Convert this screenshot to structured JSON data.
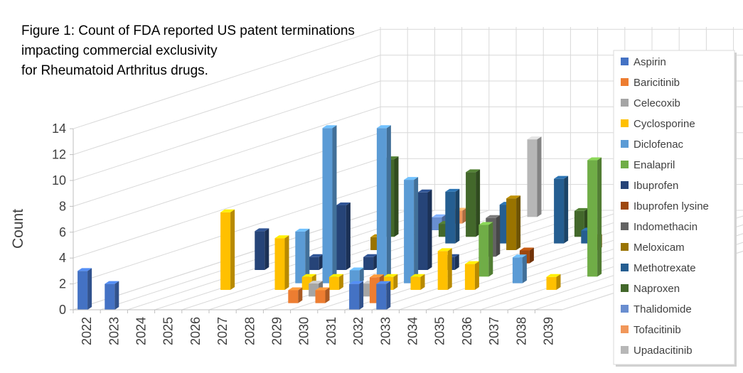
{
  "chart_data": {
    "type": "bar",
    "subtype": "3d-column",
    "title_lines": [
      "Figure 1: Count of FDA reported US patent terminations",
      "impacting commercial exclusivity",
      "for Rheumatoid Arthritus drugs."
    ],
    "ylabel": "Count",
    "xlabel": "",
    "ylim": [
      0,
      14
    ],
    "yticks": [
      "0",
      "2",
      "4",
      "6",
      "8",
      "10",
      "12",
      "14"
    ],
    "categories": [
      "2022",
      "2023",
      "2024",
      "2025",
      "2026",
      "2027",
      "2028",
      "2029",
      "2030",
      "2031",
      "2032",
      "2033",
      "2034",
      "2035",
      "2036",
      "2037",
      "2038",
      "2039"
    ],
    "grid": true,
    "legend_position": "right",
    "series": [
      {
        "name": "Aspirin",
        "color": "#4472C4",
        "values": [
          3,
          2,
          null,
          null,
          null,
          null,
          null,
          null,
          null,
          null,
          2,
          2,
          null,
          null,
          null,
          null,
          null,
          null
        ]
      },
      {
        "name": "Baricitinib",
        "color": "#ED7D31",
        "values": [
          null,
          null,
          null,
          null,
          null,
          null,
          null,
          1,
          1,
          null,
          2,
          null,
          null,
          null,
          null,
          null,
          null,
          null
        ]
      },
      {
        "name": "Celecoxib",
        "color": "#A5A5A5",
        "values": [
          null,
          null,
          null,
          null,
          null,
          null,
          null,
          1,
          null,
          1,
          null,
          null,
          null,
          null,
          null,
          null,
          null,
          null
        ]
      },
      {
        "name": "Cyclosporine",
        "color": "#FFC000",
        "values": [
          null,
          null,
          null,
          6,
          null,
          4,
          1,
          1,
          null,
          1,
          1,
          3,
          2,
          null,
          null,
          1,
          null,
          null
        ]
      },
      {
        "name": "Diclofenac",
        "color": "#5B9BD5",
        "values": [
          null,
          null,
          null,
          null,
          null,
          4,
          12,
          1,
          12,
          8,
          null,
          null,
          null,
          2,
          null,
          null,
          null,
          null
        ]
      },
      {
        "name": "Enalapril",
        "color": "#70AD47",
        "values": [
          null,
          null,
          null,
          null,
          null,
          null,
          null,
          null,
          null,
          null,
          null,
          4,
          null,
          null,
          null,
          9,
          null,
          null
        ]
      },
      {
        "name": "Ibuprofen",
        "color": "#264478",
        "values": [
          null,
          null,
          3,
          null,
          1,
          5,
          1,
          null,
          6,
          1,
          null,
          null,
          null,
          null,
          null,
          null,
          null,
          null
        ]
      },
      {
        "name": "Ibuprofen lysine",
        "color": "#9E480E",
        "values": [
          null,
          null,
          null,
          null,
          null,
          null,
          null,
          null,
          null,
          null,
          null,
          1,
          null,
          null,
          null,
          null,
          null,
          null
        ]
      },
      {
        "name": "Indomethacin",
        "color": "#636363",
        "values": [
          null,
          null,
          null,
          null,
          null,
          null,
          null,
          null,
          null,
          3,
          null,
          null,
          null,
          null,
          null,
          null,
          null,
          null
        ]
      },
      {
        "name": "Meloxicam",
        "color": "#997300",
        "values": [
          null,
          null,
          null,
          null,
          1,
          null,
          null,
          null,
          null,
          4,
          null,
          null,
          1,
          5,
          13,
          null,
          null,
          null
        ]
      },
      {
        "name": "Methotrexate",
        "color": "#255E91",
        "values": [
          null,
          null,
          null,
          null,
          null,
          null,
          4,
          null,
          3,
          null,
          5,
          1,
          null,
          4,
          null,
          null,
          null,
          null
        ]
      },
      {
        "name": "Naproxen",
        "color": "#43682B",
        "values": [
          null,
          null,
          null,
          6,
          null,
          1,
          5,
          null,
          null,
          null,
          2,
          null,
          null,
          null,
          null,
          null,
          null,
          null
        ]
      },
      {
        "name": "Thalidomide",
        "color": "#698ED0",
        "values": [
          null,
          null,
          null,
          null,
          1,
          null,
          null,
          null,
          null,
          null,
          null,
          null,
          null,
          null,
          null,
          null,
          null,
          null
        ]
      },
      {
        "name": "Tofacitinib",
        "color": "#F1975A",
        "values": [
          null,
          null,
          null,
          null,
          1,
          null,
          null,
          null,
          null,
          null,
          null,
          null,
          null,
          3,
          null,
          null,
          null,
          null
        ]
      },
      {
        "name": "Upadacitinib",
        "color": "#B7B7B7",
        "values": [
          null,
          null,
          null,
          null,
          null,
          null,
          6,
          null,
          null,
          null,
          null,
          1,
          null,
          6,
          2,
          14,
          null,
          null
        ]
      }
    ]
  }
}
